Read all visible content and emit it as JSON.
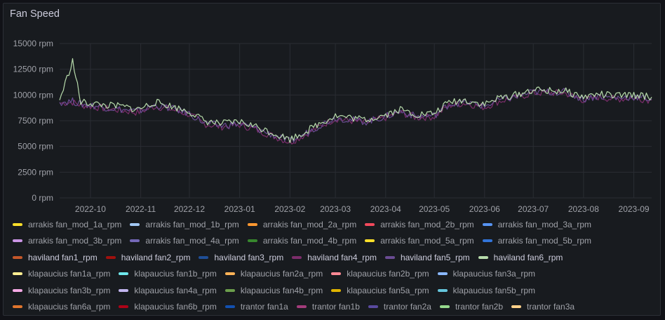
{
  "panel": {
    "title": "Fan Speed"
  },
  "chart_data": {
    "type": "line",
    "title": "Fan Speed",
    "xlabel": "",
    "ylabel": "",
    "y_unit": "rpm",
    "ylim": [
      0,
      15000
    ],
    "y_ticks": [
      "0 rpm",
      "2500 rpm",
      "5000 rpm",
      "7500 rpm",
      "10000 rpm",
      "12500 rpm",
      "15000 rpm"
    ],
    "x_ticks": [
      "2022-10",
      "2022-11",
      "2022-12",
      "2023-01",
      "2023-02",
      "2023-03",
      "2023-04",
      "2023-05",
      "2023-06",
      "2023-07",
      "2023-08",
      "2023-09"
    ],
    "grid": true,
    "legend_placement": "bottom",
    "x": [
      "2022-09-12",
      "2022-09-20",
      "2022-09-25",
      "2022-10-01",
      "2022-10-10",
      "2022-10-20",
      "2022-10-30",
      "2022-11-10",
      "2022-11-20",
      "2022-12-01",
      "2022-12-10",
      "2022-12-20",
      "2023-01-01",
      "2023-01-10",
      "2023-01-20",
      "2023-02-01",
      "2023-02-10",
      "2023-02-20",
      "2023-03-01",
      "2023-03-10",
      "2023-03-20",
      "2023-04-01",
      "2023-04-10",
      "2023-04-20",
      "2023-05-01",
      "2023-05-10",
      "2023-05-20",
      "2023-06-01",
      "2023-06-10",
      "2023-06-20",
      "2023-07-01",
      "2023-07-10",
      "2023-07-20",
      "2023-08-01",
      "2023-08-10",
      "2023-08-20",
      "2023-09-01",
      "2023-09-12"
    ],
    "series": [
      {
        "name": "haviland fan6_rpm",
        "values": [
          9500,
          13300,
          9300,
          9200,
          9000,
          8900,
          8600,
          9300,
          8900,
          8400,
          7500,
          7200,
          7400,
          7000,
          6400,
          5700,
          6400,
          7300,
          8000,
          7800,
          7600,
          8100,
          8600,
          8100,
          8200,
          9300,
          9500,
          9100,
          9700,
          10000,
          10500,
          10400,
          10400,
          9800,
          10100,
          9900,
          10000,
          9800
        ]
      },
      {
        "name": "haviland fan5_rpm",
        "values": [
          9300,
          9400,
          9100,
          9000,
          8800,
          8600,
          8400,
          9000,
          8700,
          8200,
          7300,
          7000,
          7200,
          6800,
          6200,
          5500,
          6200,
          7100,
          7800,
          7600,
          7400,
          7900,
          8400,
          7900,
          8000,
          9100,
          9300,
          8900,
          9500,
          9800,
          10300,
          10300,
          10300,
          9600,
          9900,
          9700,
          9800,
          9600
        ]
      },
      {
        "name": "haviland fan4_rpm",
        "values": [
          9200,
          9300,
          9000,
          8900,
          8700,
          8500,
          8300,
          8900,
          8600,
          8100,
          7200,
          6900,
          7100,
          6700,
          6100,
          5400,
          6100,
          7000,
          7700,
          7500,
          7300,
          7800,
          8300,
          7800,
          7900,
          9000,
          9200,
          8800,
          9400,
          9700,
          10200,
          10200,
          10200,
          9500,
          9800,
          9600,
          9700,
          9500
        ]
      }
    ],
    "legend": [
      {
        "label": "arrakis fan_mod_1a_rpm",
        "color": "#fade2a",
        "highlight": false
      },
      {
        "label": "arrakis fan_mod_1b_rpm",
        "color": "#a2c8f5",
        "highlight": false
      },
      {
        "label": "arrakis fan_mod_2a_rpm",
        "color": "#ff9830",
        "highlight": false
      },
      {
        "label": "arrakis fan_mod_2b_rpm",
        "color": "#f2495c",
        "highlight": false
      },
      {
        "label": "arrakis fan_mod_3a_rpm",
        "color": "#5794f2",
        "highlight": false
      },
      {
        "label": "arrakis fan_mod_3b_rpm",
        "color": "#ca95e5",
        "highlight": false
      },
      {
        "label": "arrakis fan_mod_4a_rpm",
        "color": "#7468b8",
        "highlight": false
      },
      {
        "label": "arrakis fan_mod_4b_rpm",
        "color": "#37872d",
        "highlight": false
      },
      {
        "label": "arrakis fan_mod_5a_rpm",
        "color": "#fade2a",
        "highlight": false
      },
      {
        "label": "arrakis fan_mod_5b_rpm",
        "color": "#3274d9",
        "highlight": false
      },
      {
        "label": "haviland fan1_rpm",
        "color": "#c4572a",
        "highlight": true
      },
      {
        "label": "haviland fan2_rpm",
        "color": "#a0100e",
        "highlight": true
      },
      {
        "label": "haviland fan3_rpm",
        "color": "#1f4e96",
        "highlight": true
      },
      {
        "label": "haviland fan4_rpm",
        "color": "#7c2d6b",
        "highlight": true
      },
      {
        "label": "haviland fan5_rpm",
        "color": "#6a4c93",
        "highlight": true
      },
      {
        "label": "haviland fan6_rpm",
        "color": "#b7dbab",
        "highlight": true
      },
      {
        "label": "klapaucius fan1a_rpm",
        "color": "#ffee92",
        "highlight": false
      },
      {
        "label": "klapaucius fan1b_rpm",
        "color": "#6ee7eb",
        "highlight": false
      },
      {
        "label": "klapaucius fan2a_rpm",
        "color": "#ffb357",
        "highlight": false
      },
      {
        "label": "klapaucius fan2b_rpm",
        "color": "#ff8a95",
        "highlight": false
      },
      {
        "label": "klapaucius fan3a_rpm",
        "color": "#8ab8ff",
        "highlight": false
      },
      {
        "label": "klapaucius fan3b_rpm",
        "color": "#f5a9e5",
        "highlight": false
      },
      {
        "label": "klapaucius fan4a_rpm",
        "color": "#c2b5ee",
        "highlight": false
      },
      {
        "label": "klapaucius fan4b_rpm",
        "color": "#6b9e4c",
        "highlight": false
      },
      {
        "label": "klapaucius fan5a_rpm",
        "color": "#e0b400",
        "highlight": false
      },
      {
        "label": "klapaucius fan5b_rpm",
        "color": "#65c5db",
        "highlight": false
      },
      {
        "label": "klapaucius fan6a_rpm",
        "color": "#e0752d",
        "highlight": false
      },
      {
        "label": "klapaucius fan6b_rpm",
        "color": "#ad0317",
        "highlight": false
      },
      {
        "label": "trantor fan1a",
        "color": "#1250b0",
        "highlight": false
      },
      {
        "label": "trantor fan1b",
        "color": "#a33c7b",
        "highlight": false
      },
      {
        "label": "trantor fan2a",
        "color": "#5a4a9f",
        "highlight": false
      },
      {
        "label": "trantor fan2b",
        "color": "#96d98d",
        "highlight": false
      },
      {
        "label": "trantor fan3a",
        "color": "#ffd18a",
        "highlight": false
      }
    ]
  }
}
